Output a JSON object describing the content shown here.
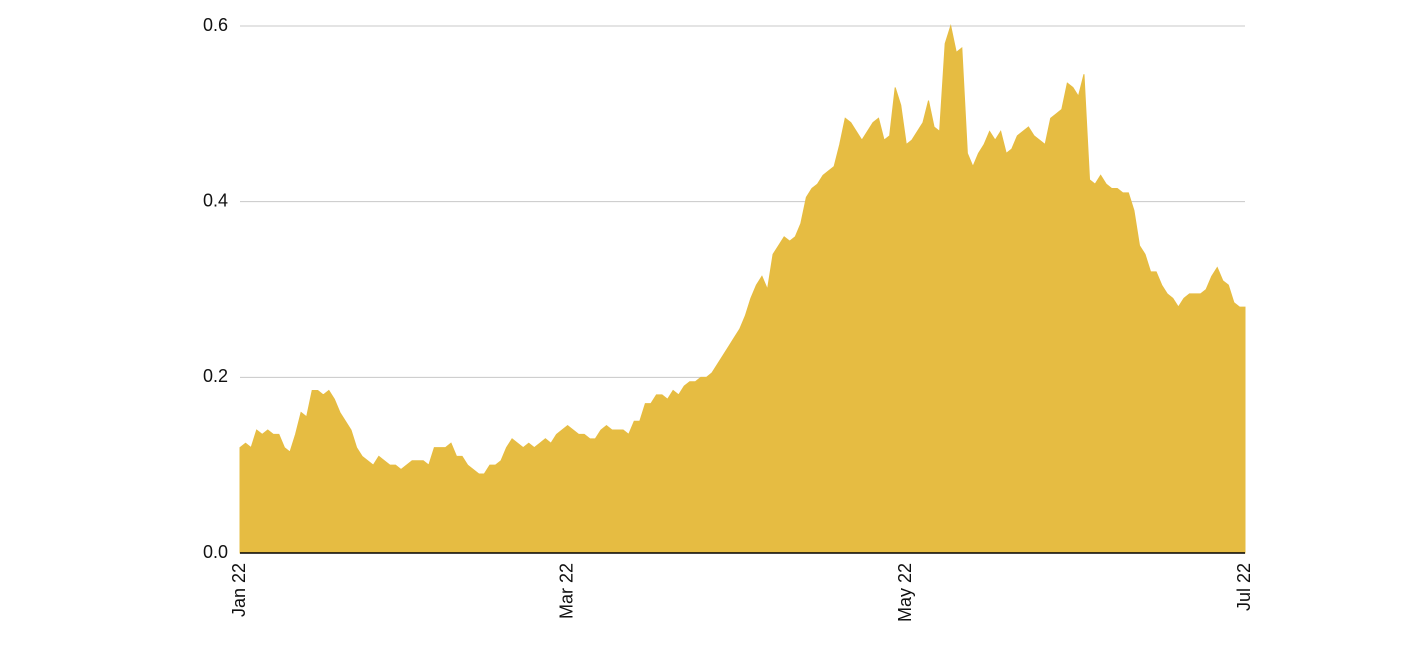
{
  "chart_data": {
    "type": "area",
    "color": "#e6bc42",
    "grid": true,
    "categories": [
      "Jan 22",
      null,
      null,
      null,
      null,
      null,
      null,
      null,
      null,
      null,
      null,
      null,
      null,
      null,
      null,
      null,
      null,
      null,
      null,
      null,
      null,
      null,
      null,
      null,
      null,
      null,
      null,
      null,
      null,
      null,
      null,
      null,
      null,
      null,
      null,
      null,
      null,
      null,
      null,
      null,
      null,
      null,
      null,
      null,
      null,
      null,
      null,
      null,
      null,
      null,
      null,
      null,
      null,
      null,
      null,
      null,
      null,
      null,
      null,
      "Mar 22",
      null,
      null,
      null,
      null,
      null,
      null,
      null,
      null,
      null,
      null,
      null,
      null,
      null,
      null,
      null,
      null,
      null,
      null,
      null,
      null,
      null,
      null,
      null,
      null,
      null,
      null,
      null,
      null,
      null,
      null,
      null,
      null,
      null,
      null,
      null,
      null,
      null,
      null,
      null,
      null,
      null,
      null,
      null,
      null,
      null,
      null,
      null,
      null,
      null,
      null,
      null,
      null,
      null,
      null,
      null,
      null,
      null,
      null,
      null,
      null,
      "May 22",
      null,
      null,
      null,
      null,
      null,
      null,
      null,
      null,
      null,
      null,
      null,
      null,
      null,
      null,
      null,
      null,
      null,
      null,
      null,
      null,
      null,
      null,
      null,
      null,
      null,
      null,
      null,
      null,
      null,
      null,
      null,
      null,
      null,
      null,
      null,
      null,
      null,
      null,
      null,
      null,
      null,
      null,
      null,
      null,
      null,
      null,
      null,
      null,
      null,
      null,
      null,
      null,
      null,
      null,
      null,
      null,
      null,
      null,
      null,
      null,
      "Jul 22"
    ],
    "values": [
      0.12,
      0.125,
      0.12,
      0.14,
      0.135,
      0.14,
      0.135,
      0.135,
      0.12,
      0.115,
      0.135,
      0.16,
      0.155,
      0.185,
      0.185,
      0.18,
      0.185,
      0.175,
      0.16,
      0.15,
      0.14,
      0.12,
      0.11,
      0.105,
      0.1,
      0.11,
      0.105,
      0.1,
      0.1,
      0.095,
      0.1,
      0.105,
      0.105,
      0.105,
      0.1,
      0.12,
      0.12,
      0.12,
      0.125,
      0.11,
      0.11,
      0.1,
      0.095,
      0.09,
      0.09,
      0.1,
      0.1,
      0.105,
      0.12,
      0.13,
      0.125,
      0.12,
      0.125,
      0.12,
      0.125,
      0.13,
      0.125,
      0.135,
      0.14,
      0.145,
      0.14,
      0.135,
      0.135,
      0.13,
      0.13,
      0.14,
      0.145,
      0.14,
      0.14,
      0.14,
      0.135,
      0.15,
      0.15,
      0.17,
      0.17,
      0.18,
      0.18,
      0.175,
      0.185,
      0.18,
      0.19,
      0.195,
      0.195,
      0.2,
      0.2,
      0.205,
      0.215,
      0.225,
      0.235,
      0.245,
      0.255,
      0.27,
      0.29,
      0.305,
      0.315,
      0.3,
      0.34,
      0.35,
      0.36,
      0.355,
      0.36,
      0.375,
      0.405,
      0.415,
      0.42,
      0.43,
      0.435,
      0.44,
      0.465,
      0.495,
      0.49,
      0.48,
      0.47,
      0.48,
      0.49,
      0.495,
      0.47,
      0.475,
      0.53,
      0.51,
      0.465,
      0.47,
      0.48,
      0.49,
      0.515,
      0.485,
      0.48,
      0.58,
      0.6,
      0.57,
      0.575,
      0.455,
      0.44,
      0.455,
      0.465,
      0.48,
      0.47,
      0.48,
      0.455,
      0.46,
      0.475,
      0.48,
      0.485,
      0.475,
      0.47,
      0.465,
      0.495,
      0.5,
      0.505,
      0.535,
      0.53,
      0.52,
      0.545,
      0.425,
      0.42,
      0.43,
      0.42,
      0.415,
      0.415,
      0.41,
      0.41,
      0.39,
      0.35,
      0.34,
      0.32,
      0.32,
      0.305,
      0.295,
      0.29,
      0.28,
      0.29,
      0.295,
      0.295,
      0.295,
      0.3,
      0.315,
      0.325,
      0.31,
      0.305,
      0.285,
      0.28,
      0.28
    ],
    "ylim": [
      0,
      0.6
    ],
    "yticks": [
      {
        "value": 0,
        "label": "0.0"
      },
      0.2,
      0.4,
      0.6
    ]
  }
}
